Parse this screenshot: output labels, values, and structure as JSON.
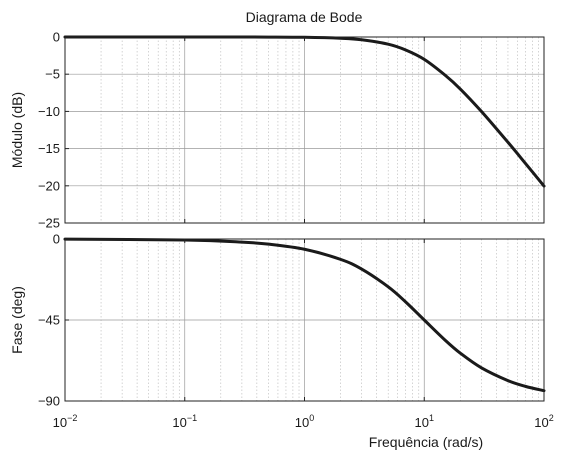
{
  "chart_data": {
    "type": "line",
    "title": "Diagrama de Bode",
    "xlabel": "Frequência (rad/s)",
    "xscale": "log",
    "xlim": [
      0.01,
      100
    ],
    "x_ticks": [
      {
        "base": "10",
        "exp": "−2",
        "value": 0.01
      },
      {
        "base": "10",
        "exp": "−1",
        "value": 0.1
      },
      {
        "base": "10",
        "exp": "0",
        "value": 1
      },
      {
        "base": "10",
        "exp": "1",
        "value": 10
      },
      {
        "base": "10",
        "exp": "2",
        "value": 100
      }
    ],
    "grid": true,
    "panels": [
      {
        "id": "magnitude",
        "ylabel": "Módulo (dB)",
        "ylim": [
          -25,
          0
        ],
        "y_ticks": [
          {
            "label": "0",
            "value": 0
          },
          {
            "label": "−5",
            "value": -5
          },
          {
            "label": "−10",
            "value": -10
          },
          {
            "label": "−15",
            "value": -15
          },
          {
            "label": "−20",
            "value": -20
          },
          {
            "label": "−25",
            "value": -25
          }
        ],
        "series": [
          {
            "x": [
              0.01,
              0.1,
              0.5,
              1,
              2,
              3,
              5,
              7,
              10,
              15,
              20,
              30,
              50,
              70,
              100
            ],
            "y": [
              0,
              0,
              -0.01,
              -0.04,
              -0.17,
              -0.37,
              -0.97,
              -1.75,
              -3.01,
              -5.16,
              -6.99,
              -10.0,
              -14.15,
              -16.99,
              -20.04
            ]
          }
        ]
      },
      {
        "id": "phase",
        "ylabel": "Fase (deg)",
        "ylim": [
          -90,
          0
        ],
        "y_ticks": [
          {
            "label": "0",
            "value": 0
          },
          {
            "label": "−45",
            "value": -45
          },
          {
            "label": "−90",
            "value": -90
          }
        ],
        "series": [
          {
            "x": [
              0.01,
              0.1,
              0.3,
              0.5,
              1,
              2,
              3,
              5,
              7,
              10,
              15,
              20,
              30,
              50,
              70,
              100
            ],
            "y": [
              -0.06,
              -0.57,
              -1.72,
              -2.86,
              -5.71,
              -11.31,
              -16.7,
              -26.57,
              -34.99,
              -45.0,
              -56.31,
              -63.43,
              -71.57,
              -78.69,
              -81.87,
              -84.29
            ]
          }
        ]
      }
    ]
  }
}
